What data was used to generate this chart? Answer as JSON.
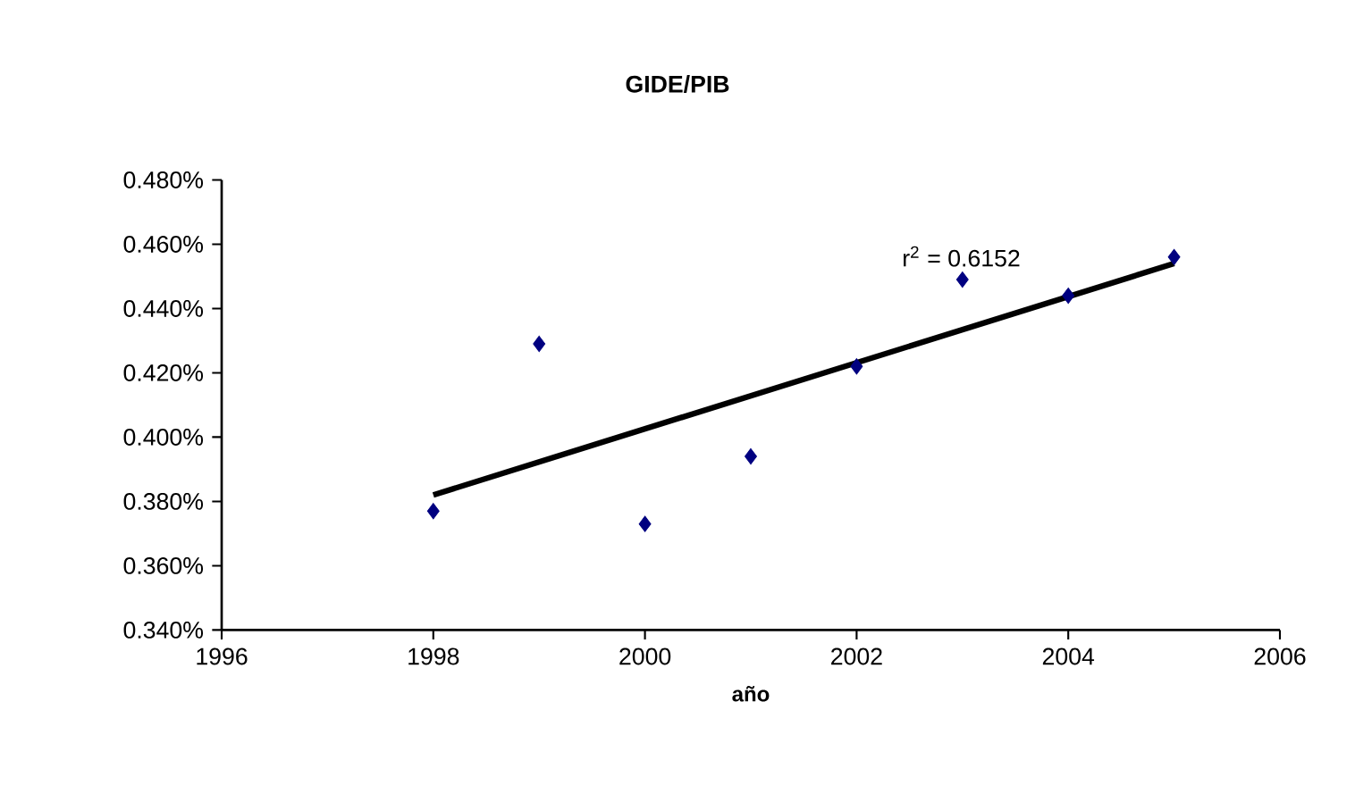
{
  "chart_data": {
    "type": "scatter",
    "title": "GIDE/PIB",
    "xlabel": "año",
    "series": [
      {
        "color": "#000080",
        "x": [
          1998,
          1999,
          2000,
          2001,
          2002,
          2003,
          2004,
          2005
        ],
        "values": [
          0.377,
          0.429,
          0.373,
          0.394,
          0.422,
          0.449,
          0.444,
          0.456
        ]
      },
      {
        "type": "line",
        "color": "#000000",
        "marker": "none",
        "x": [
          1998,
          2005
        ],
        "values": [
          0.382,
          0.454
        ]
      }
    ],
    "marker": "diamond",
    "annotations": [
      "r$^{2}$ = 0.6152"
    ],
    "xlim": [
      1996,
      2006
    ],
    "xticks": [
      1996,
      1998,
      2000,
      2002,
      2004,
      2006
    ],
    "ylim": [
      0.34,
      0.48
    ],
    "yticks": [
      {
        "value": 0.34,
        "label": "0.340%"
      },
      {
        "value": 0.36,
        "label": "0.360%"
      },
      {
        "value": 0.38,
        "label": "0.380%"
      },
      {
        "value": 0.4,
        "label": "0.400%"
      },
      {
        "value": 0.42,
        "label": "0.420%"
      },
      {
        "value": 0.44,
        "label": "0.440%"
      },
      {
        "value": 0.46,
        "label": "0.460%"
      },
      {
        "value": 0.48,
        "label": "0.480%"
      }
    ],
    "grid": false
  }
}
